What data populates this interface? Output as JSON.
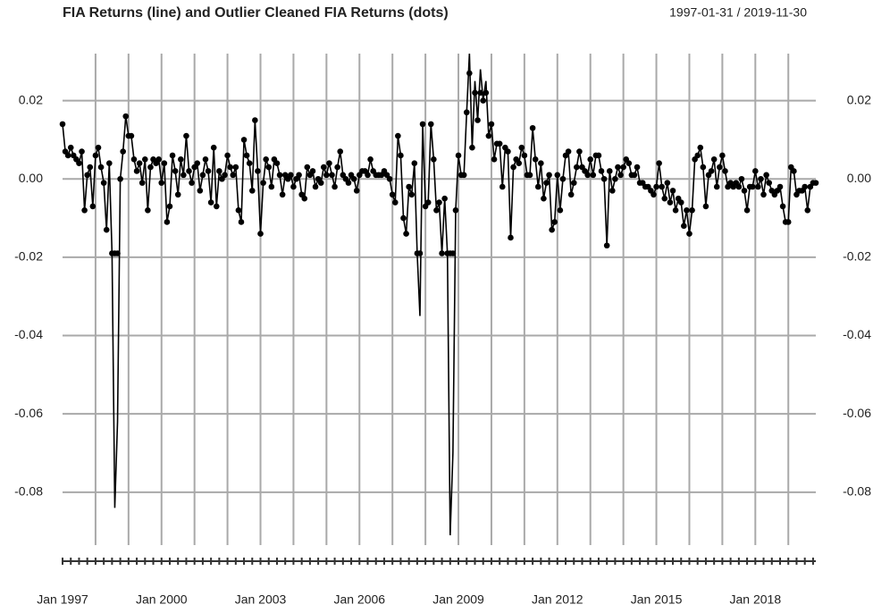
{
  "chart_data": {
    "type": "line",
    "title": "FIA Returns (line) and Outlier Cleaned FIA Returns (dots)",
    "subtitle": "1997-01-31 / 2019-11-30",
    "categories": [
      "Jan 1997",
      null,
      null,
      null,
      null,
      null,
      null,
      null,
      null,
      null,
      null,
      null,
      null,
      null,
      null,
      null,
      null,
      null,
      null,
      null,
      null,
      null,
      null,
      null,
      null,
      null,
      null,
      null,
      null,
      null,
      null,
      null,
      null,
      null,
      null,
      null,
      "Jan 2000",
      null,
      null,
      null,
      null,
      null,
      null,
      null,
      null,
      null,
      null,
      null,
      null,
      null,
      null,
      null,
      null,
      null,
      null,
      null,
      null,
      null,
      null,
      null,
      null,
      null,
      null,
      null,
      null,
      null,
      null,
      null,
      null,
      null,
      null,
      null,
      "Jan 2003",
      null,
      null,
      null,
      null,
      null,
      null,
      null,
      null,
      null,
      null,
      null,
      null,
      null,
      null,
      null,
      null,
      null,
      null,
      null,
      null,
      null,
      null,
      null,
      null,
      null,
      null,
      null,
      null,
      null,
      null,
      null,
      null,
      null,
      null,
      null,
      "Jan 2006",
      null,
      null,
      null,
      null,
      null,
      null,
      null,
      null,
      null,
      null,
      null,
      null,
      null,
      null,
      null,
      null,
      null,
      null,
      null,
      null,
      null,
      null,
      null,
      null,
      null,
      null,
      null,
      null,
      null,
      null,
      null,
      null,
      null,
      null,
      null,
      "Jan 2009",
      null,
      null,
      null,
      null,
      null,
      null,
      null,
      null,
      null,
      null,
      null,
      null,
      null,
      null,
      null,
      null,
      null,
      null,
      null,
      null,
      null,
      null,
      null,
      null,
      null,
      null,
      null,
      null,
      null,
      null,
      null,
      null,
      null,
      null,
      null,
      "Jan 2012",
      null,
      null,
      null,
      null,
      null,
      null,
      null,
      null,
      null,
      null,
      null,
      null,
      null,
      null,
      null,
      null,
      null,
      null,
      null,
      null,
      null,
      null,
      null,
      null,
      null,
      null,
      null,
      null,
      null,
      null,
      null,
      null,
      null,
      null,
      null,
      "Jan 2015",
      null,
      null,
      null,
      null,
      null,
      null,
      null,
      null,
      null,
      null,
      null,
      null,
      null,
      null,
      null,
      null,
      null,
      null,
      null,
      null,
      null,
      null,
      null,
      null,
      null,
      null,
      null,
      null,
      null,
      null,
      null,
      null,
      null,
      null,
      null,
      "Jan 2018",
      null,
      null,
      null,
      null,
      null,
      null,
      null,
      null,
      null,
      null,
      null,
      null,
      null,
      null,
      null,
      null,
      null,
      null,
      null,
      null,
      null,
      null
    ],
    "series": [
      {
        "style": "line",
        "color": "#000000",
        "values": [
          0.014,
          0.007,
          0.006,
          0.008,
          0.006,
          0.005,
          0.004,
          0.007,
          -0.008,
          0.001,
          0.003,
          -0.007,
          0.006,
          0.008,
          0.003,
          -0.001,
          -0.013,
          0.004,
          -0.019,
          -0.084,
          -0.062,
          0.0,
          0.007,
          0.016,
          0.011,
          0.011,
          0.005,
          0.002,
          0.004,
          -0.001,
          0.005,
          -0.008,
          0.003,
          0.005,
          0.004,
          0.005,
          -0.001,
          0.004,
          -0.011,
          -0.007,
          0.006,
          0.002,
          -0.004,
          0.005,
          0.001,
          0.011,
          0.002,
          -0.001,
          0.003,
          0.004,
          -0.003,
          0.001,
          0.005,
          0.002,
          -0.006,
          0.008,
          -0.007,
          0.002,
          0.0,
          0.001,
          0.006,
          0.003,
          0.001,
          0.003,
          -0.008,
          -0.011,
          0.01,
          0.006,
          0.004,
          -0.003,
          0.015,
          0.002,
          -0.014,
          -0.001,
          0.005,
          0.003,
          -0.002,
          0.005,
          0.004,
          0.001,
          -0.004,
          0.001,
          0.0,
          0.001,
          -0.002,
          0.0,
          0.001,
          -0.004,
          -0.005,
          0.003,
          0.001,
          0.002,
          -0.002,
          0.0,
          -0.001,
          0.003,
          0.001,
          0.004,
          0.001,
          -0.002,
          0.003,
          0.007,
          0.001,
          0.0,
          -0.001,
          0.001,
          0.0,
          -0.003,
          0.001,
          0.002,
          0.002,
          0.001,
          0.005,
          0.002,
          0.001,
          0.001,
          0.001,
          0.002,
          0.001,
          0.0,
          -0.004,
          -0.006,
          0.011,
          0.006,
          -0.01,
          -0.014,
          -0.002,
          -0.004,
          0.004,
          -0.019,
          -0.035,
          0.014,
          -0.007,
          -0.006,
          0.014,
          0.005,
          -0.008,
          -0.006,
          -0.019,
          -0.005,
          -0.019,
          -0.091,
          -0.07,
          -0.008,
          0.006,
          0.001,
          0.001,
          0.017,
          0.032,
          0.008,
          0.025,
          0.015,
          0.028,
          0.02,
          0.025,
          0.011,
          0.014,
          0.005,
          0.009,
          0.009,
          -0.002,
          0.008,
          0.007,
          -0.015,
          0.003,
          0.005,
          0.004,
          0.008,
          0.006,
          0.001,
          0.001,
          0.013,
          0.005,
          -0.002,
          0.004,
          -0.005,
          -0.001,
          0.001,
          -0.013,
          -0.011,
          0.001,
          -0.008,
          0.0,
          0.006,
          0.007,
          -0.004,
          -0.001,
          0.003,
          0.007,
          0.003,
          0.002,
          0.001,
          0.005,
          0.001,
          0.006,
          0.006,
          0.002,
          0.0,
          -0.017,
          0.002,
          -0.003,
          0.0,
          0.003,
          0.001,
          0.003,
          0.005,
          0.004,
          0.001,
          0.001,
          0.003,
          -0.001,
          -0.001,
          -0.002,
          -0.002,
          -0.003,
          -0.004,
          -0.002,
          0.004,
          -0.002,
          -0.005,
          -0.001,
          -0.006,
          -0.003,
          -0.008,
          -0.005,
          -0.006,
          -0.012,
          -0.008,
          -0.014,
          -0.008,
          0.005,
          0.006,
          0.008,
          0.003,
          -0.007,
          0.001,
          0.002,
          0.005,
          -0.002,
          0.003,
          0.006,
          0.002,
          -0.002,
          -0.001,
          -0.002,
          -0.001,
          -0.002,
          0.0,
          -0.003,
          -0.008,
          -0.002,
          -0.002,
          0.002,
          -0.002,
          0.0,
          -0.004,
          0.001,
          -0.001,
          -0.003,
          -0.004,
          -0.003,
          -0.002,
          -0.007,
          -0.011,
          -0.011,
          0.003,
          0.002,
          -0.004,
          -0.003,
          -0.003,
          -0.002,
          -0.008,
          -0.002,
          -0.001,
          -0.001
        ]
      },
      {
        "style": "dots",
        "color": "#000000",
        "values": [
          0.014,
          0.007,
          0.006,
          0.008,
          0.006,
          0.005,
          0.004,
          0.007,
          -0.008,
          0.001,
          0.003,
          -0.007,
          0.006,
          0.008,
          0.003,
          -0.001,
          -0.013,
          0.004,
          -0.019,
          -0.019,
          -0.019,
          0.0,
          0.007,
          0.016,
          0.011,
          0.011,
          0.005,
          0.002,
          0.004,
          -0.001,
          0.005,
          -0.008,
          0.003,
          0.005,
          0.004,
          0.005,
          -0.001,
          0.004,
          -0.011,
          -0.007,
          0.006,
          0.002,
          -0.004,
          0.005,
          0.001,
          0.011,
          0.002,
          -0.001,
          0.003,
          0.004,
          -0.003,
          0.001,
          0.005,
          0.002,
          -0.006,
          0.008,
          -0.007,
          0.002,
          0.0,
          0.001,
          0.006,
          0.003,
          0.001,
          0.003,
          -0.008,
          -0.011,
          0.01,
          0.006,
          0.004,
          -0.003,
          0.015,
          0.002,
          -0.014,
          -0.001,
          0.005,
          0.003,
          -0.002,
          0.005,
          0.004,
          0.001,
          -0.004,
          0.001,
          0.0,
          0.001,
          -0.002,
          0.0,
          0.001,
          -0.004,
          -0.005,
          0.003,
          0.001,
          0.002,
          -0.002,
          0.0,
          -0.001,
          0.003,
          0.001,
          0.004,
          0.001,
          -0.002,
          0.003,
          0.007,
          0.001,
          0.0,
          -0.001,
          0.001,
          0.0,
          -0.003,
          0.001,
          0.002,
          0.002,
          0.001,
          0.005,
          0.002,
          0.001,
          0.001,
          0.001,
          0.002,
          0.001,
          0.0,
          -0.004,
          -0.006,
          0.011,
          0.006,
          -0.01,
          -0.014,
          -0.002,
          -0.004,
          0.004,
          -0.019,
          -0.019,
          0.014,
          -0.007,
          -0.006,
          0.014,
          0.005,
          -0.008,
          -0.006,
          -0.019,
          -0.005,
          -0.019,
          -0.019,
          -0.019,
          -0.008,
          0.006,
          0.001,
          0.001,
          0.017,
          0.027,
          0.008,
          0.022,
          0.015,
          0.022,
          0.02,
          0.022,
          0.011,
          0.014,
          0.005,
          0.009,
          0.009,
          -0.002,
          0.008,
          0.007,
          -0.015,
          0.003,
          0.005,
          0.004,
          0.008,
          0.006,
          0.001,
          0.001,
          0.013,
          0.005,
          -0.002,
          0.004,
          -0.005,
          -0.001,
          0.001,
          -0.013,
          -0.011,
          0.001,
          -0.008,
          0.0,
          0.006,
          0.007,
          -0.004,
          -0.001,
          0.003,
          0.007,
          0.003,
          0.002,
          0.001,
          0.005,
          0.001,
          0.006,
          0.006,
          0.002,
          0.0,
          -0.017,
          0.002,
          -0.003,
          0.0,
          0.003,
          0.001,
          0.003,
          0.005,
          0.004,
          0.001,
          0.001,
          0.003,
          -0.001,
          -0.001,
          -0.002,
          -0.002,
          -0.003,
          -0.004,
          -0.002,
          0.004,
          -0.002,
          -0.005,
          -0.001,
          -0.006,
          -0.003,
          -0.008,
          -0.005,
          -0.006,
          -0.012,
          -0.008,
          -0.014,
          -0.008,
          0.005,
          0.006,
          0.008,
          0.003,
          -0.007,
          0.001,
          0.002,
          0.005,
          -0.002,
          0.003,
          0.006,
          0.002,
          -0.002,
          -0.001,
          -0.002,
          -0.001,
          -0.002,
          0.0,
          -0.003,
          -0.008,
          -0.002,
          -0.002,
          0.002,
          -0.002,
          0.0,
          -0.004,
          0.001,
          -0.001,
          -0.003,
          -0.004,
          -0.003,
          -0.002,
          -0.007,
          -0.011,
          -0.011,
          0.003,
          0.002,
          -0.004,
          -0.003,
          -0.003,
          -0.002,
          -0.008,
          -0.002,
          -0.001,
          -0.001
        ]
      }
    ],
    "ylim": [
      -0.0935,
      0.032
    ],
    "yticks": [
      0.02,
      {
        "value": 0,
        "label": "0.00"
      },
      -0.02,
      -0.04,
      -0.06,
      -0.08
    ],
    "grid": true
  }
}
